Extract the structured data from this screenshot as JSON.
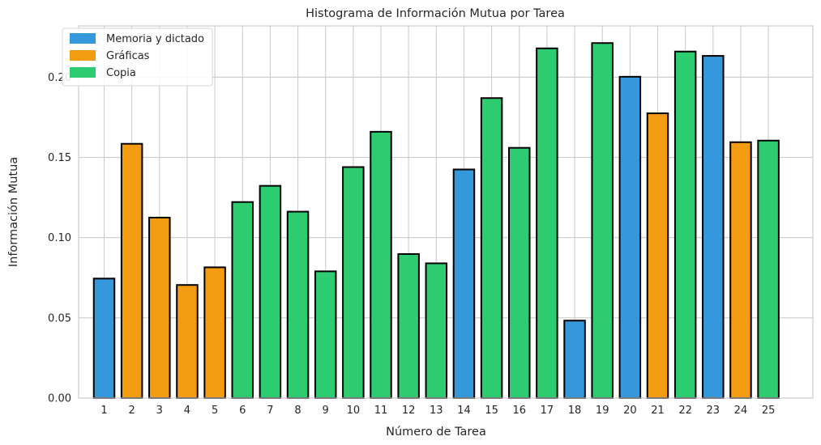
{
  "chart_data": {
    "type": "bar",
    "title": "Histograma de Información Mutua por Tarea",
    "xlabel": "Número de Tarea",
    "ylabel": "Información Mutua",
    "ylim": [
      0,
      0.232
    ],
    "yticks": [
      0.0,
      0.05,
      0.1,
      0.15,
      0.2
    ],
    "ytick_labels": [
      "0.00",
      "0.05",
      "0.10",
      "0.15",
      "0.20"
    ],
    "grid": true,
    "legend_position": "top-left",
    "categories": [
      "1",
      "2",
      "3",
      "4",
      "5",
      "6",
      "7",
      "8",
      "9",
      "10",
      "11",
      "12",
      "13",
      "14",
      "15",
      "16",
      "17",
      "18",
      "19",
      "20",
      "21",
      "22",
      "23",
      "24",
      "25"
    ],
    "values": [
      0.0745,
      0.1585,
      0.1125,
      0.0705,
      0.0815,
      0.1222,
      0.1323,
      0.1162,
      0.079,
      0.144,
      0.166,
      0.0898,
      0.084,
      0.1425,
      0.187,
      0.156,
      0.218,
      0.0483,
      0.2213,
      0.2003,
      0.1775,
      0.216,
      0.2133,
      0.1595,
      0.1605
    ],
    "groups": [
      "Memoria y dictado",
      "Gráficas",
      "Gráficas",
      "Gráficas",
      "Gráficas",
      "Copia",
      "Copia",
      "Copia",
      "Copia",
      "Copia",
      "Copia",
      "Copia",
      "Copia",
      "Memoria y dictado",
      "Copia",
      "Copia",
      "Copia",
      "Memoria y dictado",
      "Copia",
      "Memoria y dictado",
      "Gráficas",
      "Copia",
      "Memoria y dictado",
      "Gráficas",
      "Copia"
    ],
    "series": [
      {
        "name": "Memoria y dictado",
        "color": "#3498db"
      },
      {
        "name": "Gráficas",
        "color": "#f39c12"
      },
      {
        "name": "Copia",
        "color": "#2ecc71"
      }
    ],
    "bar_edge_color": "#000000"
  }
}
